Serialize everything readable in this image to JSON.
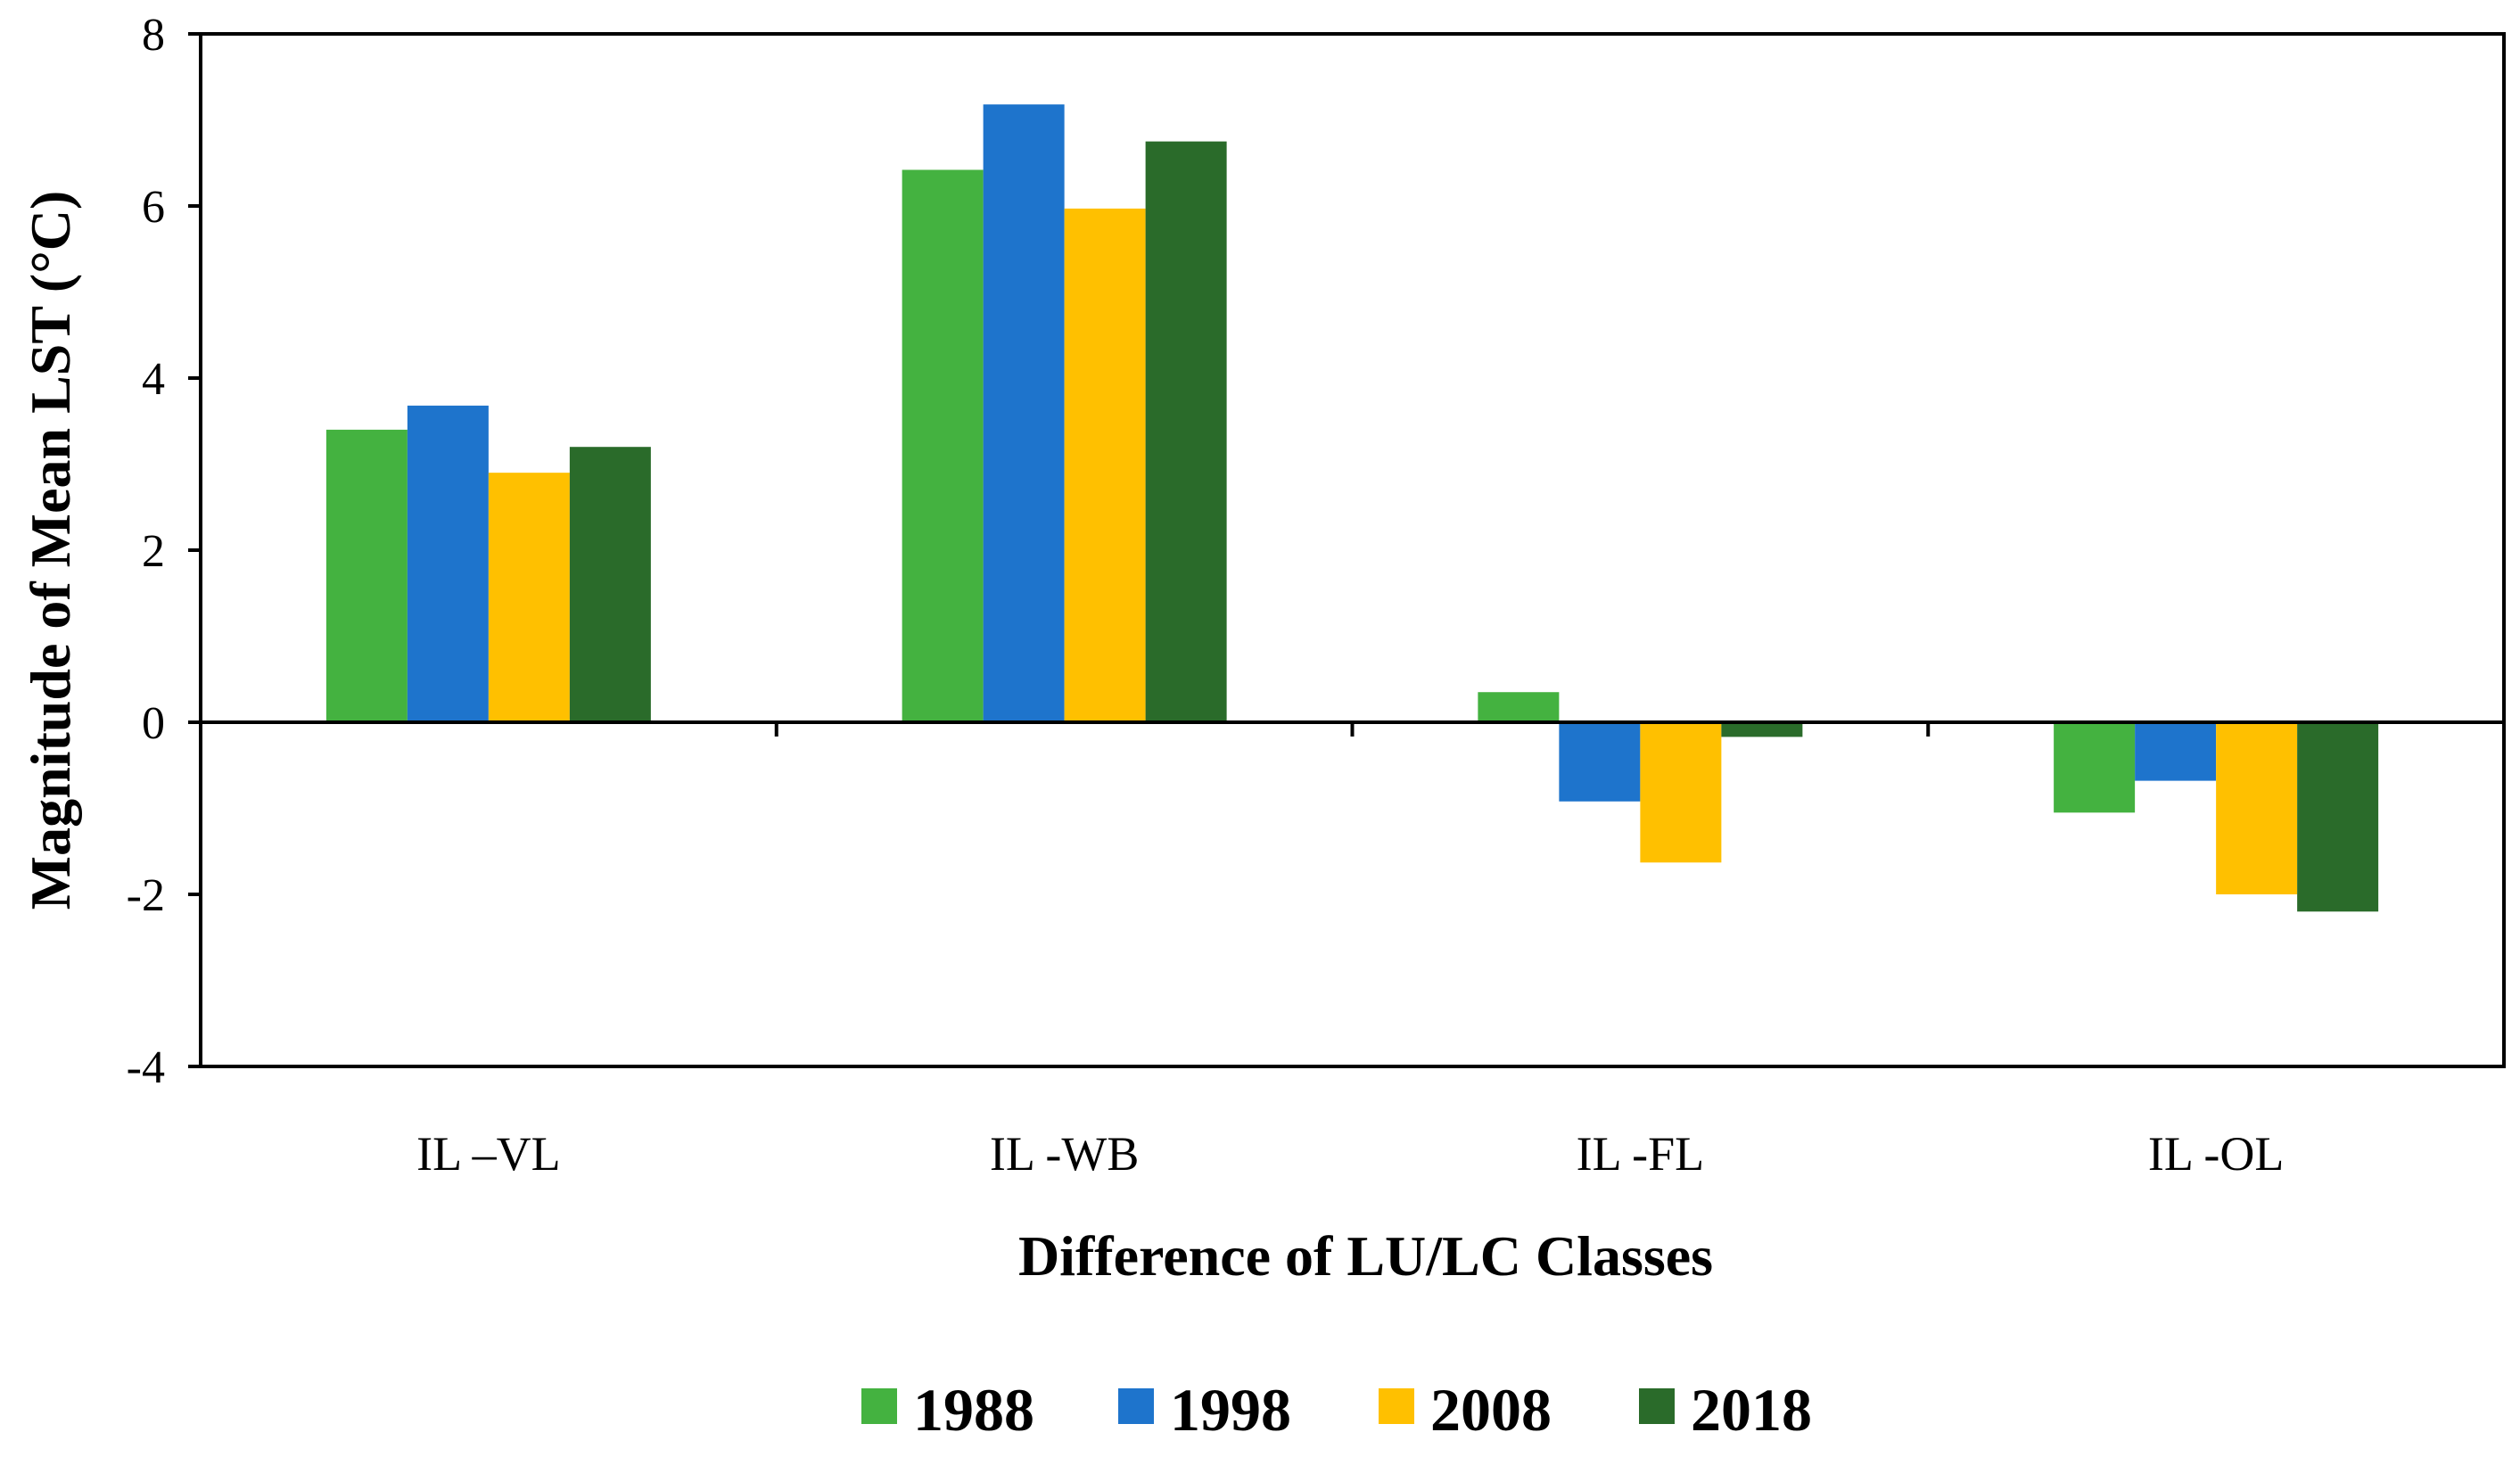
{
  "chart_data": {
    "type": "bar",
    "title": "",
    "xlabel": "Difference of LU/LC Classes",
    "ylabel": "Magnitude of Mean LST (°C)",
    "ylim": [
      -4,
      8
    ],
    "yticks": [
      -4,
      -2,
      0,
      2,
      4,
      6,
      8
    ],
    "ytick_labels": [
      "-4",
      "-2",
      "0",
      "2",
      "4",
      "6",
      "8"
    ],
    "categories": [
      "IL –VL",
      "IL -WB",
      "IL -FL",
      "IL -OL"
    ],
    "series": [
      {
        "name": "1988",
        "color": "#44b240",
        "values": [
          3.4,
          6.42,
          0.35,
          -1.05
        ]
      },
      {
        "name": "1998",
        "color": "#1e74cc",
        "values": [
          3.68,
          7.18,
          -0.92,
          -0.68
        ]
      },
      {
        "name": "2008",
        "color": "#ffc000",
        "values": [
          2.9,
          5.97,
          -1.63,
          -2.0
        ]
      },
      {
        "name": "2018",
        "color": "#2a6b2a",
        "values": [
          3.2,
          6.75,
          -0.17,
          -2.2
        ]
      }
    ],
    "legend_position": "bottom-center",
    "grid": false
  }
}
